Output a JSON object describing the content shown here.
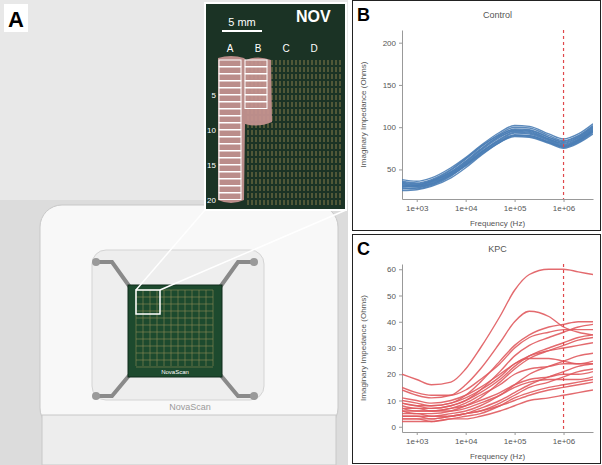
{
  "panel_labels": [
    "A",
    "B",
    "C"
  ],
  "photo": {
    "device_label": "NovaScan",
    "board_label": "NovaScan",
    "inset_header": "NOV",
    "scale_bar": "5 mm",
    "columns": [
      "A",
      "B",
      "C",
      "D"
    ],
    "rows": [
      "5",
      "10",
      "15",
      "20"
    ]
  },
  "chart_data": [
    {
      "type": "line",
      "title": "Control",
      "xlabel": "Frequency (Hz)",
      "ylabel": "Imaginary Impedance (Ohms)",
      "log": "x",
      "grid": false,
      "color": "#4a7db5",
      "x": [
        500,
        1000,
        2000,
        5000,
        10000,
        20000,
        50000,
        100000,
        200000,
        500000,
        1000000,
        2000000,
        4000000
      ],
      "xlim": [
        500,
        4000000
      ],
      "xticks": [
        {
          "value": 1000,
          "label": "1e+03"
        },
        {
          "value": 10000,
          "label": "1e+04"
        },
        {
          "value": 100000,
          "label": "1e+05"
        },
        {
          "value": 1000000,
          "label": "1e+06"
        }
      ],
      "ylim": [
        15,
        215
      ],
      "yticks": [
        50,
        100,
        150,
        200
      ],
      "reference_x": 1000000,
      "series": [
        {
          "values": [
            32,
            30,
            34,
            45,
            58,
            72,
            88,
            96,
            95,
            86,
            80,
            86,
            98
          ]
        },
        {
          "values": [
            28,
            27,
            31,
            42,
            55,
            69,
            85,
            93,
            92,
            84,
            78,
            84,
            96
          ]
        },
        {
          "values": [
            35,
            33,
            37,
            49,
            62,
            76,
            92,
            100,
            99,
            90,
            84,
            90,
            102
          ]
        },
        {
          "values": [
            25,
            26,
            30,
            40,
            52,
            66,
            82,
            90,
            90,
            82,
            76,
            82,
            94
          ]
        },
        {
          "values": [
            38,
            36,
            40,
            52,
            64,
            78,
            94,
            102,
            101,
            92,
            86,
            92,
            104
          ]
        },
        {
          "values": [
            30,
            29,
            33,
            44,
            56,
            70,
            86,
            94,
            93,
            85,
            79,
            85,
            97
          ]
        },
        {
          "values": [
            27,
            28,
            32,
            43,
            54,
            67,
            82,
            89,
            88,
            81,
            75,
            81,
            92
          ]
        },
        {
          "values": [
            33,
            31,
            36,
            47,
            60,
            74,
            90,
            98,
            97,
            88,
            82,
            88,
            100
          ]
        },
        {
          "values": [
            29,
            31,
            35,
            46,
            57,
            70,
            84,
            91,
            90,
            83,
            77,
            83,
            95
          ]
        },
        {
          "values": [
            36,
            34,
            38,
            50,
            63,
            77,
            91,
            97,
            96,
            88,
            83,
            89,
            101
          ]
        },
        {
          "values": [
            31,
            30,
            33,
            44,
            55,
            68,
            83,
            90,
            89,
            82,
            77,
            84,
            96
          ]
        },
        {
          "values": [
            34,
            32,
            36,
            47,
            59,
            73,
            89,
            95,
            94,
            86,
            81,
            87,
            99
          ]
        }
      ]
    },
    {
      "type": "line",
      "title": "KPC",
      "xlabel": "Frequency (Hz)",
      "ylabel": "Imaginary Impedance (Ohms)",
      "log": "x",
      "grid": false,
      "color": "#e05a5e",
      "x": [
        500,
        1000,
        2000,
        5000,
        10000,
        20000,
        50000,
        100000,
        200000,
        500000,
        1000000,
        2000000,
        4000000
      ],
      "xlim": [
        500,
        4000000
      ],
      "xticks": [
        {
          "value": 1000,
          "label": "1e+03"
        },
        {
          "value": 10000,
          "label": "1e+04"
        },
        {
          "value": 100000,
          "label": "1e+05"
        },
        {
          "value": 1000000,
          "label": "1e+06"
        }
      ],
      "ylim": [
        -2,
        62
      ],
      "yticks": [
        0,
        10,
        20,
        30,
        40,
        50,
        60
      ],
      "reference_x": 1000000,
      "series": [
        {
          "values": [
            20,
            18,
            16,
            17,
            22,
            30,
            42,
            52,
            58,
            60,
            60,
            59,
            58
          ]
        },
        {
          "values": [
            10,
            9,
            8,
            9,
            12,
            17,
            25,
            31,
            35,
            38,
            39,
            40,
            40
          ]
        },
        {
          "values": [
            8,
            7,
            7,
            8,
            10,
            14,
            21,
            27,
            31,
            34,
            36,
            38,
            39
          ]
        },
        {
          "values": [
            14,
            12,
            11,
            12,
            16,
            22,
            32,
            40,
            44,
            42,
            38,
            36,
            35
          ]
        },
        {
          "values": [
            6,
            5,
            5,
            6,
            8,
            11,
            17,
            22,
            26,
            29,
            31,
            33,
            34
          ]
        },
        {
          "values": [
            9,
            8,
            7,
            8,
            10,
            13,
            18,
            23,
            27,
            30,
            32,
            34,
            35
          ]
        },
        {
          "values": [
            5,
            5,
            4,
            5,
            6,
            8,
            12,
            16,
            20,
            23,
            25,
            27,
            28
          ]
        },
        {
          "values": [
            11,
            10,
            9,
            10,
            12,
            15,
            20,
            24,
            27,
            29,
            30,
            31,
            32
          ]
        },
        {
          "values": [
            4,
            4,
            4,
            4,
            5,
            7,
            10,
            13,
            16,
            19,
            21,
            23,
            24
          ]
        },
        {
          "values": [
            7,
            7,
            6,
            7,
            9,
            12,
            16,
            20,
            22,
            23,
            24,
            24,
            25
          ]
        },
        {
          "values": [
            3,
            3,
            3,
            4,
            5,
            6,
            9,
            12,
            15,
            17,
            19,
            21,
            22
          ]
        },
        {
          "values": [
            6,
            6,
            6,
            7,
            8,
            10,
            13,
            16,
            18,
            19,
            20,
            20,
            21
          ]
        },
        {
          "values": [
            2,
            2,
            2,
            3,
            4,
            5,
            8,
            11,
            13,
            15,
            16,
            17,
            18
          ]
        },
        {
          "values": [
            9,
            8,
            8,
            9,
            11,
            14,
            19,
            24,
            26,
            26,
            25,
            24,
            24
          ]
        },
        {
          "values": [
            4,
            4,
            3,
            4,
            5,
            6,
            8,
            10,
            12,
            14,
            15,
            16,
            17
          ]
        },
        {
          "values": [
            15,
            13,
            12,
            12,
            14,
            18,
            24,
            30,
            34,
            36,
            37,
            37,
            37
          ]
        },
        {
          "values": [
            3,
            3,
            2,
            3,
            3,
            4,
            6,
            8,
            10,
            11,
            12,
            13,
            14
          ]
        },
        {
          "values": [
            7,
            6,
            6,
            6,
            7,
            9,
            12,
            15,
            17,
            18,
            18,
            18,
            19
          ]
        }
      ]
    }
  ]
}
